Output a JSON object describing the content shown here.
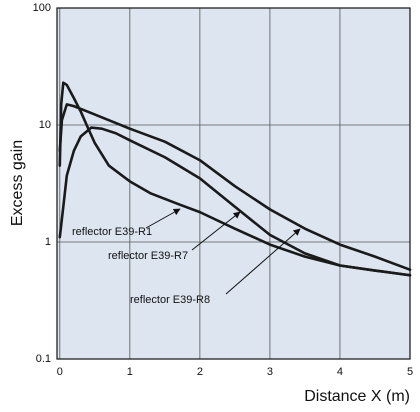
{
  "chart_data": {
    "type": "line",
    "x_label": "Distance X (m)",
    "y_label": "Excess gain",
    "xlim": [
      -0.04,
      5
    ],
    "xticks": [
      0,
      1,
      2,
      3,
      4,
      5
    ],
    "ylim": [
      0.1,
      100
    ],
    "yticks": [
      0.1,
      1,
      10,
      100
    ],
    "y_scale": "log",
    "grid": true,
    "background": "#dde6f0",
    "series": [
      {
        "name": "reflector E39-R1",
        "color": "#1a1a1a",
        "x": [
          0,
          0.02,
          0.05,
          0.1,
          0.2,
          0.3,
          0.4,
          0.5,
          0.7,
          1,
          1.3,
          1.7,
          2,
          2.5,
          3,
          3.5,
          4,
          4.5,
          5
        ],
        "values": [
          4.5,
          15,
          23,
          22,
          17,
          13,
          9.5,
          7,
          4.5,
          3.3,
          2.6,
          2.1,
          1.8,
          1.3,
          0.95,
          0.75,
          0.63,
          0.57,
          0.52
        ]
      },
      {
        "name": "reflector E39-R7",
        "color": "#1a1a1a",
        "x": [
          0,
          0.05,
          0.1,
          0.2,
          0.3,
          0.45,
          0.6,
          0.8,
          1,
          1.5,
          2,
          2.5,
          3,
          3.5,
          4,
          4.5,
          5
        ],
        "values": [
          1.1,
          2,
          3.7,
          6,
          8,
          9.5,
          9.3,
          8.5,
          7.4,
          5.3,
          3.5,
          2,
          1.15,
          0.8,
          0.63,
          0.57,
          0.52
        ]
      },
      {
        "name": "reflector E39-R8",
        "color": "#1a1a1a",
        "x": [
          0,
          0.03,
          0.1,
          0.2,
          0.4,
          0.7,
          1,
          1.5,
          2,
          2.5,
          3,
          3.5,
          4,
          4.5,
          5
        ],
        "values": [
          6,
          11,
          15,
          14.5,
          13,
          11,
          9.3,
          7.2,
          5,
          3,
          1.9,
          1.3,
          0.95,
          0.75,
          0.58
        ]
      }
    ]
  }
}
